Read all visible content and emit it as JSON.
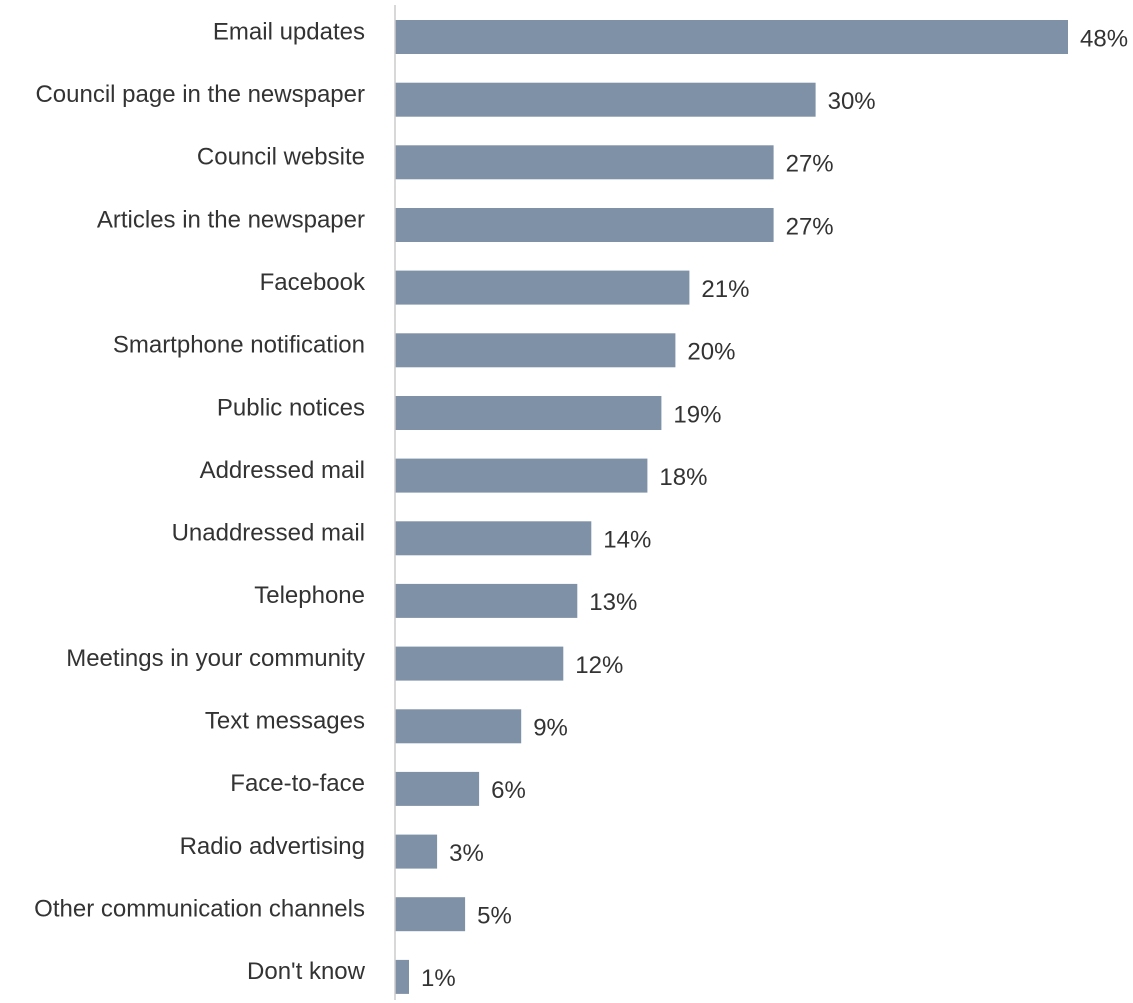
{
  "chart_data": {
    "type": "bar",
    "orientation": "horizontal",
    "categories": [
      "Email updates",
      "Council page in the newspaper",
      "Council website",
      "Articles in the newspaper",
      "Facebook",
      "Smartphone notification",
      "Public notices",
      "Addressed mail",
      "Unaddressed mail",
      "Telephone",
      "Meetings in your community",
      "Text messages",
      "Face-to-face",
      "Radio advertising",
      "Other communication channels",
      "Don't know"
    ],
    "values": [
      48,
      30,
      27,
      27,
      21,
      20,
      19,
      18,
      14,
      13,
      12,
      9,
      6,
      3,
      5,
      1
    ],
    "value_labels": [
      "48%",
      "30%",
      "27%",
      "27%",
      "21%",
      "20%",
      "19%",
      "18%",
      "14%",
      "13%",
      "12%",
      "9%",
      "6%",
      "3%",
      "5%",
      "1%"
    ],
    "title": "",
    "xlabel": "",
    "ylabel": "",
    "xlim": [
      0,
      48
    ],
    "grid": false,
    "legend": "none",
    "colors": {
      "bar": "#7f91a6",
      "axis": "#cccccc",
      "text": "#333333"
    }
  }
}
